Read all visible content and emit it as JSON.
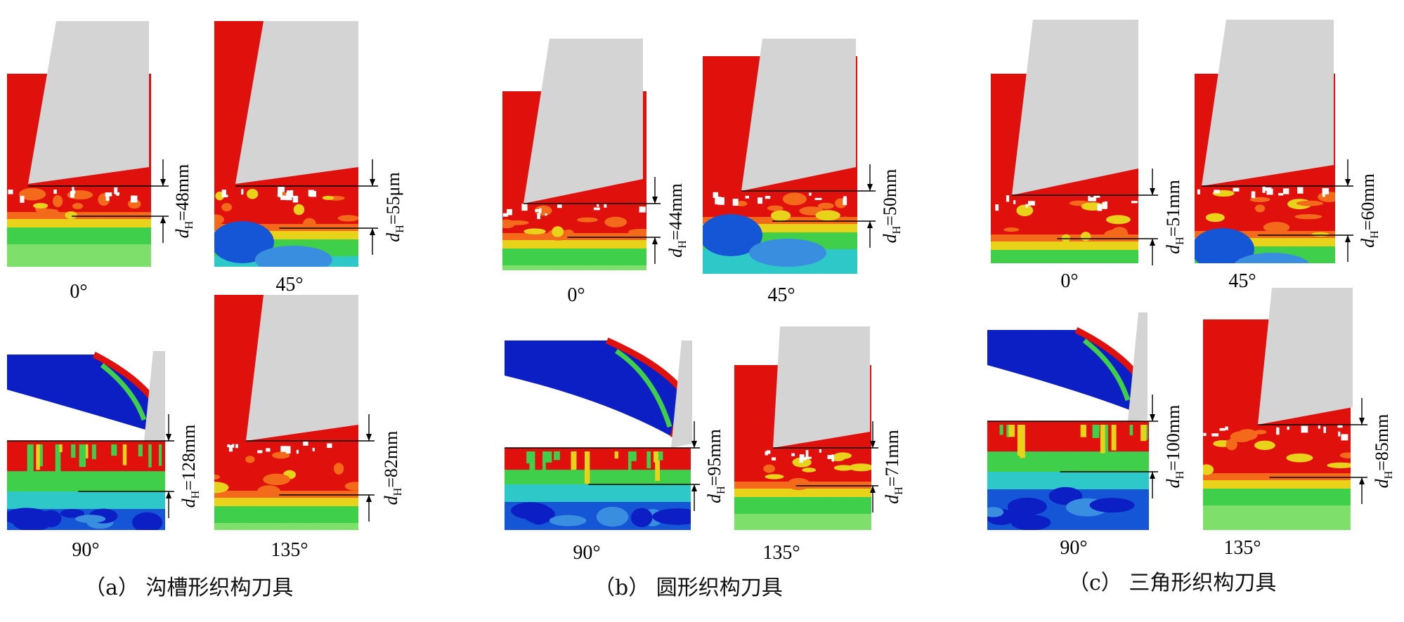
{
  "groups": [
    {
      "caption": "（a）  沟槽形织构刀具",
      "panels": [
        {
          "angle": "0°",
          "depth": "=48mm",
          "dsym": "d",
          "dsub": "H"
        },
        {
          "angle": "45°",
          "depth": "=55μm",
          "dsym": "d",
          "dsub": "H"
        },
        {
          "angle": "90°",
          "depth": "=128mm",
          "dsym": "d",
          "dsub": "H"
        },
        {
          "angle": "135°",
          "depth": "=82mm",
          "dsym": "d",
          "dsub": "H"
        }
      ]
    },
    {
      "caption": "（b）  圆形织构刀具",
      "panels": [
        {
          "angle": "0°",
          "depth": "=44mm",
          "dsym": "d",
          "dsub": "H"
        },
        {
          "angle": "45°",
          "depth": "=50mm",
          "dsym": "d",
          "dsub": "H"
        },
        {
          "angle": "90°",
          "depth": "=95mm",
          "dsym": "d",
          "dsub": "H"
        },
        {
          "angle": "135°",
          "depth": "=71mm",
          "dsym": "d",
          "dsub": "H"
        }
      ]
    },
    {
      "caption": "（c）  三角形织构刀具",
      "panels": [
        {
          "angle": "0°",
          "depth": "=51mm",
          "dsym": "d",
          "dsub": "H"
        },
        {
          "angle": "45°",
          "depth": "=60mm",
          "dsym": "d",
          "dsub": "H"
        },
        {
          "angle": "90°",
          "depth": "=100mm",
          "dsym": "d",
          "dsub": "H"
        },
        {
          "angle": "135°",
          "depth": "=85mm",
          "dsym": "d",
          "dsub": "H"
        }
      ]
    }
  ],
  "colors": {
    "red": "#e0100c",
    "orange": "#f26a1a",
    "yellow": "#e8d21a",
    "green": "#3fcf4a",
    "lightgreen": "#7ee06a",
    "cyan": "#2fc8c8",
    "blue": "#1556d6",
    "darkblue": "#0b1fc4",
    "tool": "#d4d4d4"
  }
}
